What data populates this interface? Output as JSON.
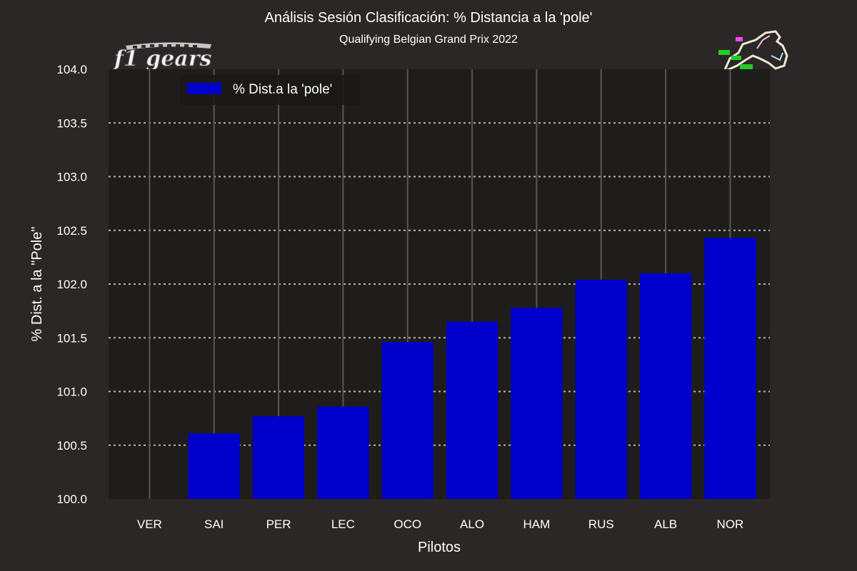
{
  "header": {
    "title": "Análisis Sesión Clasificación: % Distancia a la 'pole'",
    "subtitle": "Qualifying Belgian Grand Prix 2022"
  },
  "logo": {
    "text": "f1 gears"
  },
  "colors": {
    "bar": "#0000cc",
    "plot_bg": "#1e1d1c",
    "page_bg": "#2a2726"
  },
  "chart_data": {
    "type": "bar",
    "categories": [
      "VER",
      "SAI",
      "PER",
      "LEC",
      "OCO",
      "ALO",
      "HAM",
      "RUS",
      "ALB",
      "NOR"
    ],
    "series": [
      {
        "name": "% Dist.a la 'pole'",
        "values": [
          100.0,
          100.61,
          100.77,
          100.86,
          101.46,
          101.65,
          101.78,
          102.04,
          102.1,
          102.43
        ]
      }
    ],
    "xlabel": "Pilotos",
    "ylabel": "% Dist. a la \"Pole\"",
    "ylim": [
      100.0,
      104.0
    ],
    "yticks": [
      "100.0",
      "100.5",
      "101.0",
      "101.5",
      "102.0",
      "102.5",
      "103.0",
      "103.5",
      "104.0"
    ],
    "grid": true,
    "legend": "top-left"
  }
}
